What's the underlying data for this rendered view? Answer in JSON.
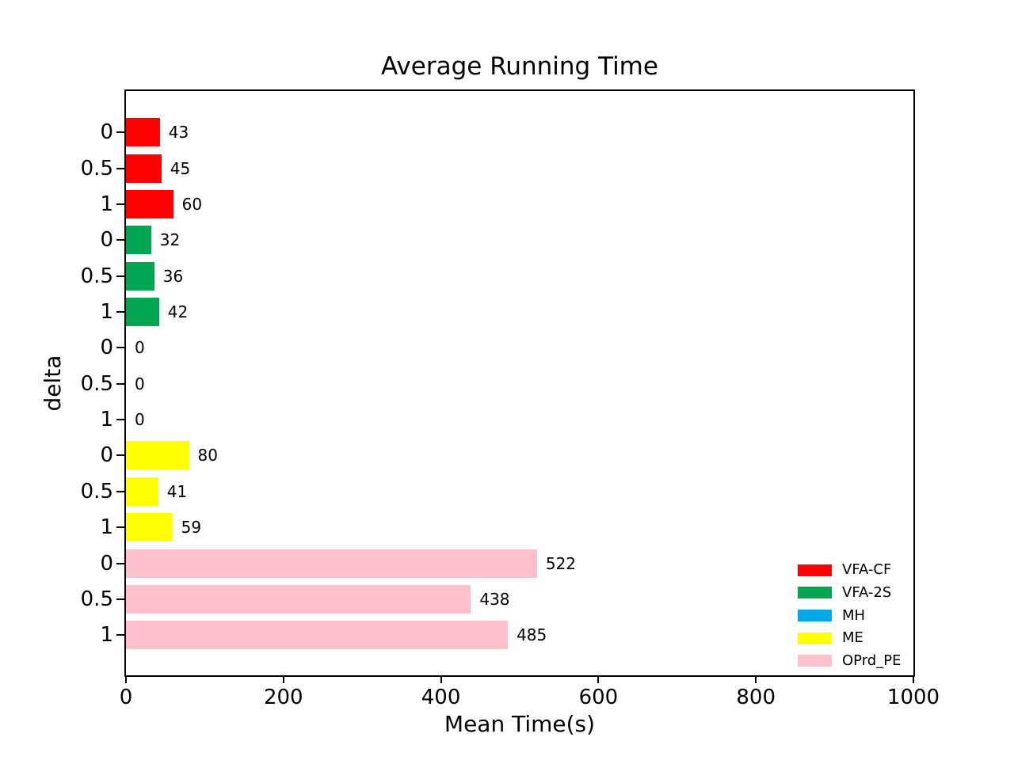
{
  "chart_data": {
    "type": "bar",
    "orientation": "horizontal",
    "title": "Average Running Time",
    "xlabel": "Mean Time(s)",
    "ylabel": "delta",
    "xlim": [
      0,
      1000
    ],
    "x_ticks": [
      0,
      200,
      400,
      600,
      800,
      1000
    ],
    "group_categories": [
      "0",
      "0.5",
      "1"
    ],
    "series": [
      {
        "name": "VFA-CF",
        "color": "#ff0000",
        "values": [
          43,
          45,
          60
        ]
      },
      {
        "name": "VFA-2S",
        "color": "#00a651",
        "values": [
          32,
          36,
          42
        ]
      },
      {
        "name": "MH",
        "color": "#00a8e8",
        "values": [
          0,
          0,
          0
        ]
      },
      {
        "name": "ME",
        "color": "#ffff00",
        "values": [
          80,
          41,
          59
        ]
      },
      {
        "name": "OPrd_PE",
        "color": "#ffc0cb",
        "values": [
          522,
          438,
          485
        ]
      }
    ],
    "value_labels_shown": true,
    "legend_position": "lower right",
    "grid": false,
    "axis_color": "#000000",
    "background_color": "#ffffff"
  }
}
